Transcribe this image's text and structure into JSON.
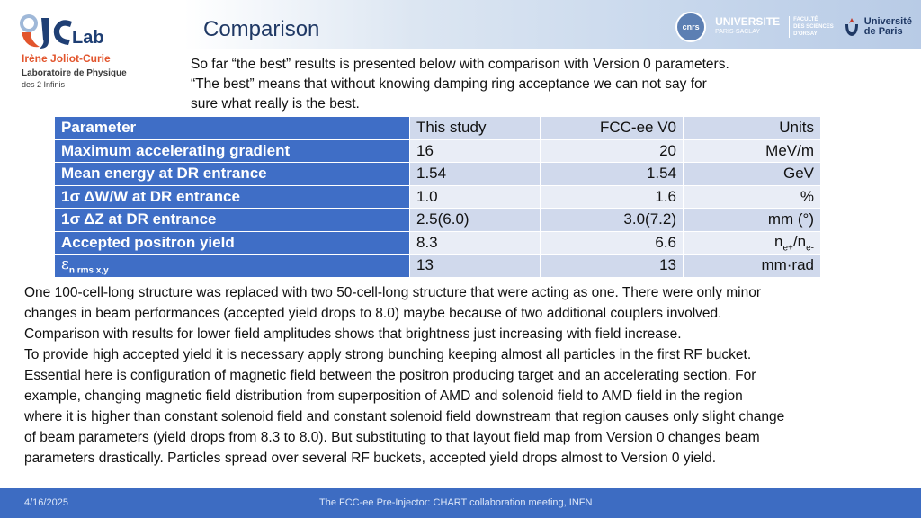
{
  "header": {
    "title": "Comparison",
    "logo": {
      "lab": "Lab",
      "lab_prefix": "IJC",
      "line1": "Irène Joliot-Curie",
      "line2": "Laboratoire de Physique",
      "line3": "des 2 Infinis"
    },
    "right_logos": {
      "cnrs": "cnrs",
      "universite": "UNIVERSITE",
      "paris_saclay": "PARIS-SACLAY",
      "faculte": [
        "FACULTÉ",
        "DES SCIENCES",
        "D'ORSAY"
      ],
      "upar": [
        "Université",
        "de Paris"
      ]
    }
  },
  "intro": [
    "So far “the best” results is presented below with comparison with Version 0 parameters.",
    "“The best” means that without knowing damping ring acceptance we can not say for",
    "sure  what really is the best."
  ],
  "table": {
    "header": {
      "parameter": "Parameter",
      "study": "This study",
      "fcc": "FCC-ee V0",
      "units": "Units"
    },
    "rows": [
      {
        "parameter": "Maximum accelerating gradient",
        "study": "16",
        "fcc": "20",
        "units": "MeV/m"
      },
      {
        "parameter": "Mean energy at DR entrance",
        "study": "1.54",
        "fcc": "1.54",
        "units": "GeV"
      },
      {
        "parameter": "1σ ΔW/W at DR entrance",
        "study": "1.0",
        "fcc": "1.6",
        "units": "%"
      },
      {
        "parameter": "1σ ΔZ at DR entrance",
        "study": "2.5(6.0)",
        "fcc": "3.0(7.2)",
        "units": "mm (°)"
      },
      {
        "parameter": "Accepted positron yield",
        "study": "8.3",
        "fcc": "6.6",
        "units_base1": "n",
        "units_sub1": "e+",
        "units_sep": "/n",
        "units_sub2": "e-"
      },
      {
        "parameter_symbol": "ε",
        "parameter_sub": "n rms x,y",
        "study": "13",
        "fcc": "13",
        "units": "mm·rad"
      }
    ]
  },
  "body": [
    "One 100-cell-long structure was replaced with two 50-cell-long structure that were acting as one. There were only minor",
    "changes in beam performances (accepted yield drops to 8.0) maybe because of two additional couplers involved.",
    "Comparison with results for lower field amplitudes shows that brightness just increasing  with field increase.",
    "To provide high accepted yield it is necessary apply strong bunching keeping almost all particles in the first RF bucket.",
    "Essential here is configuration of magnetic field between the positron producing target and an accelerating section. For",
    "example, changing magnetic field distribution from superposition of AMD and solenoid field to AMD field in the region",
    "where it is higher than constant solenoid field and constant solenoid field downstream that region causes only slight change",
    "of beam parameters (yield drops from 8.3 to 8.0). But substituting to that layout field map from Version 0 changes beam",
    "parameters drastically. Particles spread over several RF buckets, accepted yield drops almost to Version 0 yield."
  ],
  "footer": {
    "date": "4/16/2025",
    "text": "The FCC-ee Pre-Injector: CHART collaboration meeting, INFN"
  },
  "colors": {
    "accent": "#3f6ec6",
    "footer": "#3d6cc2",
    "title": "#1f3864",
    "logo_orange": "#e2552d"
  }
}
